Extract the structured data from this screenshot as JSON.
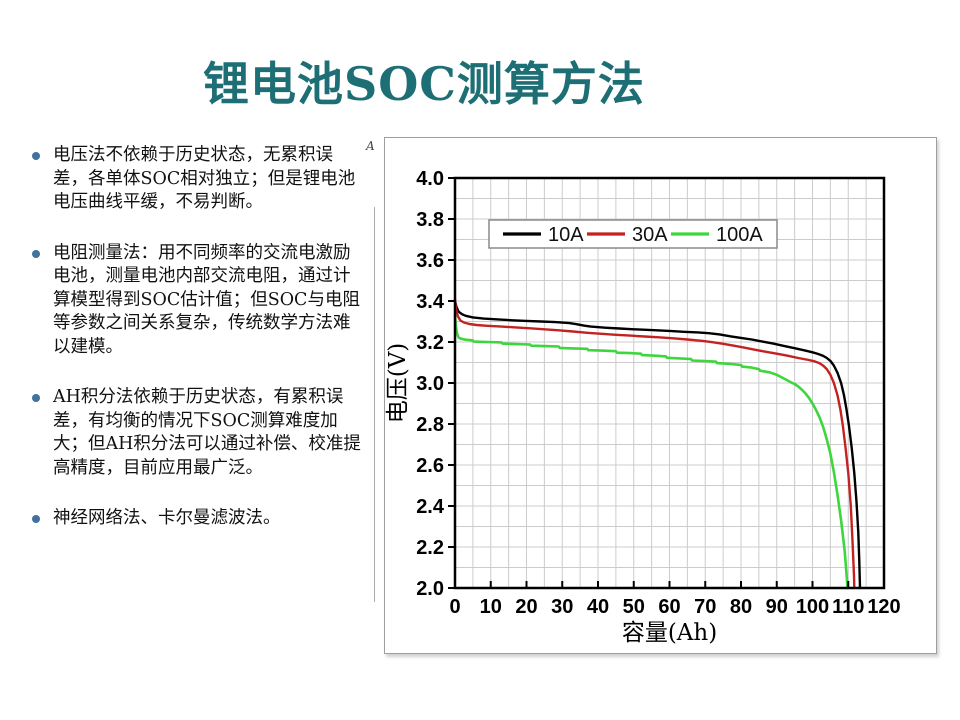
{
  "slide": {
    "title": "锂电池SOC测算方法",
    "stray_label": "A",
    "bullets": [
      "电压法不依赖于历史状态，无累积误差，各单体SOC相对独立；但是锂电池电压曲线平缓，不易判断。",
      "电阻测量法：用不同频率的交流电激励电池，测量电池内部交流电阻，通过计算模型得到SOC估计值；但SOC与电阻等参数之间关系复杂，传统数学方法难以建模。",
      "AH积分法依赖于历史状态，有累积误差，有均衡的情况下SOC测算难度加大；但AH积分法可以通过补偿、校准提高精度，目前应用最广泛。",
      "神经网络法、卡尔曼滤波法。"
    ]
  },
  "colors": {
    "title": "#1d6f75",
    "bullet_marker": "#41719c",
    "panel_border": "#9e9e9e",
    "grid": "#cccccc",
    "frame": "#000000"
  },
  "chart_data": {
    "type": "line",
    "title": "",
    "xlabel": "容量(Ah)",
    "ylabel": "电压(V)",
    "xlim": [
      0,
      120
    ],
    "ylim": [
      2.0,
      4.0
    ],
    "x_ticks": [
      "0",
      "10",
      "20",
      "30",
      "40",
      "50",
      "60",
      "70",
      "80",
      "90",
      "100",
      "110",
      "120"
    ],
    "y_ticks": [
      "4.0",
      "3.8",
      "3.6",
      "3.4",
      "3.2",
      "3.0",
      "2.8",
      "2.6",
      "2.4",
      "2.2",
      "2.0"
    ],
    "x_grid_step": 5,
    "y_grid_step": 0.1,
    "grid": true,
    "grid_color": "#cccccc",
    "legend_position": "top-inside",
    "series": [
      {
        "name": "10A",
        "color": "#000000",
        "points": [
          [
            0,
            3.4
          ],
          [
            0.4,
            3.372
          ],
          [
            1,
            3.348
          ],
          [
            2,
            3.335
          ],
          [
            3,
            3.328
          ],
          [
            5,
            3.32
          ],
          [
            8,
            3.314
          ],
          [
            12,
            3.31
          ],
          [
            16,
            3.306
          ],
          [
            20,
            3.303
          ],
          [
            24,
            3.3
          ],
          [
            28,
            3.297
          ],
          [
            32,
            3.292
          ],
          [
            34,
            3.287
          ],
          [
            36,
            3.28
          ],
          [
            38,
            3.275
          ],
          [
            42,
            3.27
          ],
          [
            46,
            3.266
          ],
          [
            50,
            3.262
          ],
          [
            55,
            3.258
          ],
          [
            60,
            3.254
          ],
          [
            64,
            3.25
          ],
          [
            68,
            3.247
          ],
          [
            71,
            3.243
          ],
          [
            74,
            3.237
          ],
          [
            77,
            3.228
          ],
          [
            80,
            3.22
          ],
          [
            83,
            3.212
          ],
          [
            86,
            3.202
          ],
          [
            89,
            3.192
          ],
          [
            92,
            3.181
          ],
          [
            95,
            3.17
          ],
          [
            98,
            3.158
          ],
          [
            100,
            3.15
          ],
          [
            101.5,
            3.142
          ],
          [
            103,
            3.132
          ],
          [
            104,
            3.122
          ],
          [
            105,
            3.108
          ],
          [
            106,
            3.085
          ],
          [
            107,
            3.05
          ],
          [
            108,
            3.0
          ],
          [
            108.8,
            2.94
          ],
          [
            109.5,
            2.87
          ],
          [
            110.2,
            2.79
          ],
          [
            111,
            2.68
          ],
          [
            111.7,
            2.56
          ],
          [
            112.3,
            2.42
          ],
          [
            112.8,
            2.27
          ],
          [
            113.1,
            2.13
          ],
          [
            113.3,
            2.0
          ]
        ]
      },
      {
        "name": "30A",
        "color": "#c32222",
        "points": [
          [
            0,
            3.408
          ],
          [
            0.3,
            3.36
          ],
          [
            0.8,
            3.325
          ],
          [
            1.5,
            3.305
          ],
          [
            2.5,
            3.295
          ],
          [
            4,
            3.288
          ],
          [
            6,
            3.283
          ],
          [
            9,
            3.279
          ],
          [
            13,
            3.275
          ],
          [
            17,
            3.271
          ],
          [
            21,
            3.267
          ],
          [
            25,
            3.262
          ],
          [
            29,
            3.257
          ],
          [
            33,
            3.251
          ],
          [
            37,
            3.245
          ],
          [
            41,
            3.24
          ],
          [
            45,
            3.235
          ],
          [
            49,
            3.231
          ],
          [
            53,
            3.227
          ],
          [
            57,
            3.223
          ],
          [
            61,
            3.218
          ],
          [
            65,
            3.212
          ],
          [
            69,
            3.206
          ],
          [
            72,
            3.199
          ],
          [
            75,
            3.191
          ],
          [
            78,
            3.182
          ],
          [
            81,
            3.172
          ],
          [
            84,
            3.162
          ],
          [
            87,
            3.152
          ],
          [
            90,
            3.143
          ],
          [
            93,
            3.133
          ],
          [
            96,
            3.122
          ],
          [
            99,
            3.112
          ],
          [
            100.5,
            3.106
          ],
          [
            102,
            3.096
          ],
          [
            103,
            3.085
          ],
          [
            104,
            3.068
          ],
          [
            105,
            3.04
          ],
          [
            106,
            3.0
          ],
          [
            107,
            2.94
          ],
          [
            107.8,
            2.87
          ],
          [
            108.5,
            2.79
          ],
          [
            109.2,
            2.69
          ],
          [
            110,
            2.56
          ],
          [
            110.7,
            2.4
          ],
          [
            111.2,
            2.23
          ],
          [
            111.6,
            2.06
          ],
          [
            111.7,
            2.0
          ]
        ]
      },
      {
        "name": "100A",
        "color": "#3dd63d",
        "points": [
          [
            0,
            3.33
          ],
          [
            0.25,
            3.275
          ],
          [
            0.6,
            3.24
          ],
          [
            1,
            3.222
          ],
          [
            1.8,
            3.215
          ],
          [
            3,
            3.211
          ],
          [
            5,
            3.208
          ],
          [
            5.2,
            3.202
          ],
          [
            9,
            3.2
          ],
          [
            13,
            3.198
          ],
          [
            13.3,
            3.192
          ],
          [
            17,
            3.19
          ],
          [
            21,
            3.188
          ],
          [
            21.3,
            3.182
          ],
          [
            25,
            3.18
          ],
          [
            29,
            3.178
          ],
          [
            29.3,
            3.171
          ],
          [
            33,
            3.169
          ],
          [
            37,
            3.167
          ],
          [
            37.3,
            3.16
          ],
          [
            41,
            3.158
          ],
          [
            45,
            3.155
          ],
          [
            45.3,
            3.148
          ],
          [
            49,
            3.146
          ],
          [
            52,
            3.143
          ],
          [
            52.3,
            3.136
          ],
          [
            56,
            3.133
          ],
          [
            59,
            3.13
          ],
          [
            59.3,
            3.123
          ],
          [
            63,
            3.12
          ],
          [
            66,
            3.117
          ],
          [
            66.3,
            3.11
          ],
          [
            70,
            3.107
          ],
          [
            73,
            3.104
          ],
          [
            73.3,
            3.097
          ],
          [
            77,
            3.093
          ],
          [
            80,
            3.088
          ],
          [
            80.3,
            3.08
          ],
          [
            83,
            3.075
          ],
          [
            85,
            3.068
          ],
          [
            85.3,
            3.06
          ],
          [
            88,
            3.052
          ],
          [
            90,
            3.04
          ],
          [
            92,
            3.022
          ],
          [
            94,
            3.003
          ],
          [
            95,
            2.995
          ],
          [
            96,
            2.983
          ],
          [
            97,
            2.968
          ],
          [
            98,
            2.95
          ],
          [
            99,
            2.928
          ],
          [
            100,
            2.9
          ],
          [
            101,
            2.868
          ],
          [
            102,
            2.832
          ],
          [
            103,
            2.785
          ],
          [
            104,
            2.725
          ],
          [
            105,
            2.655
          ],
          [
            106,
            2.565
          ],
          [
            107,
            2.455
          ],
          [
            108,
            2.33
          ],
          [
            109,
            2.18
          ],
          [
            109.6,
            2.05
          ],
          [
            109.8,
            2.0
          ]
        ]
      }
    ]
  }
}
